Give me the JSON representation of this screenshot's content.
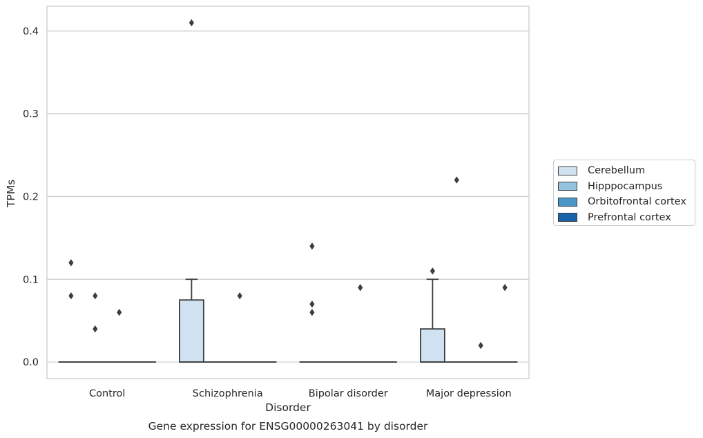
{
  "chart_data": {
    "type": "box",
    "title": "Gene expression for ENSG00000263041 by disorder",
    "xlabel": "Disorder",
    "ylabel": "TPMs",
    "ylim": [
      -0.02,
      0.43
    ],
    "yticks": [
      0.0,
      0.1,
      0.2,
      0.3,
      0.4
    ],
    "ytick_labels": [
      "0.0",
      "0.1",
      "0.2",
      "0.3",
      "0.4"
    ],
    "categories": [
      "Control",
      "Schizophrenia",
      "Bipolar disorder",
      "Major depression"
    ],
    "grid": "horizontal",
    "legend_position": "right",
    "series": [
      {
        "name": "Cerebellum",
        "color": "#d0e1f2",
        "boxes": [
          {
            "q1": 0.0,
            "median": 0.0,
            "q3": 0.0,
            "whisker_low": 0.0,
            "whisker_high": 0.0,
            "outliers": [
              0.12,
              0.08
            ]
          },
          {
            "q1": 0.0,
            "median": 0.0,
            "q3": 0.075,
            "whisker_low": 0.0,
            "whisker_high": 0.1,
            "outliers": [
              0.41
            ]
          },
          {
            "q1": 0.0,
            "median": 0.0,
            "q3": 0.0,
            "whisker_low": 0.0,
            "whisker_high": 0.0,
            "outliers": [
              0.14,
              0.07,
              0.06
            ]
          },
          {
            "q1": 0.0,
            "median": 0.0,
            "q3": 0.04,
            "whisker_low": 0.0,
            "whisker_high": 0.1,
            "outliers": [
              0.11
            ]
          }
        ]
      },
      {
        "name": "Hipppocampus",
        "color": "#94c4df",
        "boxes": [
          {
            "q1": 0.0,
            "median": 0.0,
            "q3": 0.0,
            "whisker_low": 0.0,
            "whisker_high": 0.0,
            "outliers": [
              0.08,
              0.04
            ]
          },
          {
            "q1": 0.0,
            "median": 0.0,
            "q3": 0.0,
            "whisker_low": 0.0,
            "whisker_high": 0.0,
            "outliers": []
          },
          {
            "q1": 0.0,
            "median": 0.0,
            "q3": 0.0,
            "whisker_low": 0.0,
            "whisker_high": 0.0,
            "outliers": []
          },
          {
            "q1": 0.0,
            "median": 0.0,
            "q3": 0.0,
            "whisker_low": 0.0,
            "whisker_high": 0.0,
            "outliers": [
              0.22
            ]
          }
        ]
      },
      {
        "name": "Orbitofrontal cortex",
        "color": "#4a98c9",
        "boxes": [
          {
            "q1": 0.0,
            "median": 0.0,
            "q3": 0.0,
            "whisker_low": 0.0,
            "whisker_high": 0.0,
            "outliers": [
              0.06
            ]
          },
          {
            "q1": 0.0,
            "median": 0.0,
            "q3": 0.0,
            "whisker_low": 0.0,
            "whisker_high": 0.0,
            "outliers": [
              0.08
            ]
          },
          {
            "q1": 0.0,
            "median": 0.0,
            "q3": 0.0,
            "whisker_low": 0.0,
            "whisker_high": 0.0,
            "outliers": [
              0.09
            ]
          },
          {
            "q1": 0.0,
            "median": 0.0,
            "q3": 0.0,
            "whisker_low": 0.0,
            "whisker_high": 0.0,
            "outliers": [
              0.02
            ]
          }
        ]
      },
      {
        "name": "Prefrontal cortex",
        "color": "#1764ab",
        "boxes": [
          {
            "q1": 0.0,
            "median": 0.0,
            "q3": 0.0,
            "whisker_low": 0.0,
            "whisker_high": 0.0,
            "outliers": []
          },
          {
            "q1": 0.0,
            "median": 0.0,
            "q3": 0.0,
            "whisker_low": 0.0,
            "whisker_high": 0.0,
            "outliers": []
          },
          {
            "q1": 0.0,
            "median": 0.0,
            "q3": 0.0,
            "whisker_low": 0.0,
            "whisker_high": 0.0,
            "outliers": []
          },
          {
            "q1": 0.0,
            "median": 0.0,
            "q3": 0.0,
            "whisker_low": 0.0,
            "whisker_high": 0.0,
            "outliers": [
              0.09
            ]
          }
        ]
      }
    ]
  }
}
